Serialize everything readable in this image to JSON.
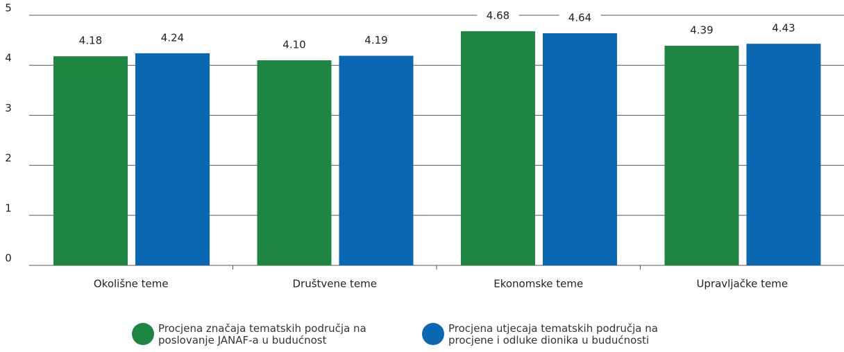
{
  "chart_data": {
    "type": "bar",
    "categories": [
      "Okolišne teme",
      "Društvene teme",
      "Ekonomske teme",
      "Upravljačke teme"
    ],
    "series": [
      {
        "name": "Procjena značaja tematskih područja na poslovanje JANAF-a u budućnost",
        "color": "#1f8641",
        "values": [
          4.18,
          4.1,
          4.68,
          4.39
        ],
        "value_labels": [
          "4.18",
          "4.10",
          "4.68",
          "4.39"
        ]
      },
      {
        "name": "Procjena utjecaja tematskih područja na procjene i odluke dionika u budućnosti",
        "color": "#0a68b2",
        "values": [
          4.24,
          4.19,
          4.64,
          4.43
        ],
        "value_labels": [
          "4.24",
          "4.19",
          "4.64",
          "4.43"
        ]
      }
    ],
    "ylim": [
      0,
      5
    ],
    "yticks": [
      0,
      1,
      2,
      3,
      4,
      5
    ],
    "grid": true,
    "legend": "bottom"
  }
}
